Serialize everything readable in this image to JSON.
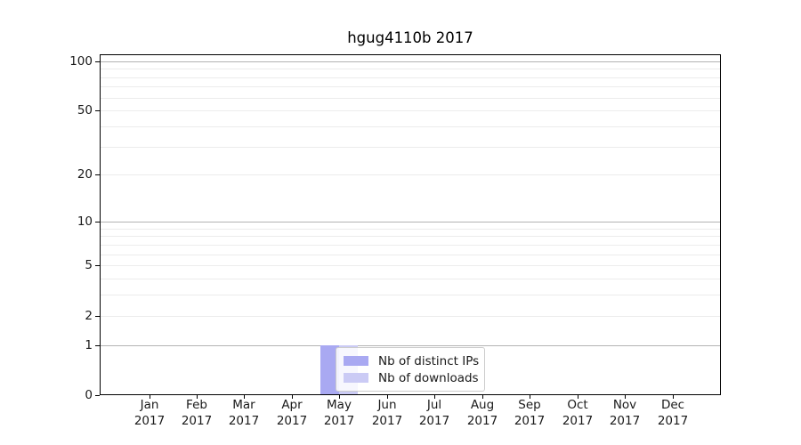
{
  "chart_data": {
    "type": "bar",
    "title": "hgug4110b 2017",
    "categories": [
      "Jan 2017",
      "Feb 2017",
      "Mar 2017",
      "Apr 2017",
      "May 2017",
      "Jun 2017",
      "Jul 2017",
      "Aug 2017",
      "Sep 2017",
      "Oct 2017",
      "Nov 2017",
      "Dec 2017"
    ],
    "series": [
      {
        "name": "Nb of distinct IPs",
        "color": "#a9a9f2",
        "values": [
          0,
          0,
          0,
          0,
          1,
          0,
          0,
          0,
          0,
          0,
          0,
          0
        ]
      },
      {
        "name": "Nb of downloads",
        "color": "#cbcbf5",
        "values": [
          0,
          0,
          0,
          0,
          1,
          0,
          0,
          0,
          0,
          0,
          0,
          0
        ]
      }
    ],
    "xlabel": "",
    "ylabel": "",
    "yscale": "log1p",
    "ylim": [
      0,
      110
    ],
    "ytick_values": [
      0,
      1,
      2,
      5,
      10,
      20,
      50,
      100
    ],
    "ytick_labels": [
      "0",
      "1",
      "2",
      "5",
      "10",
      "20",
      "50",
      "100"
    ],
    "grid_values": [
      1,
      2,
      3,
      4,
      5,
      6,
      7,
      8,
      9,
      10,
      20,
      30,
      40,
      50,
      60,
      70,
      80,
      90,
      100
    ],
    "grid_major_values": [
      1,
      10,
      100
    ],
    "grid": "on",
    "legend_position": "lower-center"
  },
  "colors": {
    "background": "#ffffff",
    "spine": "#000000",
    "grid_major": "#b3b3b3",
    "grid_minor": "#ececec",
    "text": "#1a1a1a",
    "legend_border": "#cccccc"
  }
}
